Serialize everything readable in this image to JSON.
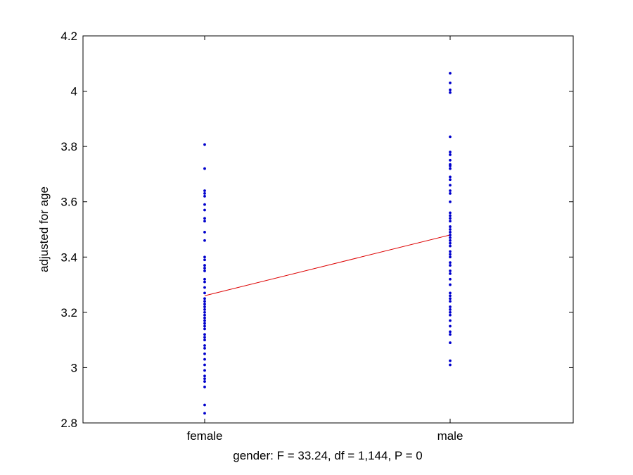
{
  "chart_data": {
    "type": "scatter",
    "title": "",
    "xlabel": "gender: F = 33.24, df = 1,144, P = 0",
    "ylabel": "adjusted for age",
    "categories": [
      "female",
      "male"
    ],
    "ylim": [
      2.8,
      4.2
    ],
    "yticks": [
      2.8,
      3,
      3.2,
      3.4,
      3.6,
      3.8,
      4,
      4.2
    ],
    "grid": false,
    "series": [
      {
        "category": "female",
        "values": [
          3.807,
          3.72,
          3.64,
          3.63,
          3.62,
          3.59,
          3.57,
          3.54,
          3.53,
          3.49,
          3.46,
          3.4,
          3.39,
          3.37,
          3.36,
          3.35,
          3.32,
          3.31,
          3.29,
          3.27,
          3.25,
          3.24,
          3.23,
          3.22,
          3.21,
          3.2,
          3.19,
          3.18,
          3.17,
          3.16,
          3.15,
          3.14,
          3.12,
          3.11,
          3.1,
          3.08,
          3.07,
          3.05,
          3.03,
          3.01,
          2.99,
          2.97,
          2.96,
          2.95,
          2.93,
          2.865,
          2.835
        ]
      },
      {
        "category": "male",
        "values": [
          4.065,
          4.03,
          4.005,
          3.995,
          3.835,
          3.78,
          3.77,
          3.75,
          3.735,
          3.73,
          3.72,
          3.69,
          3.68,
          3.66,
          3.64,
          3.63,
          3.6,
          3.56,
          3.55,
          3.54,
          3.53,
          3.51,
          3.5,
          3.49,
          3.48,
          3.47,
          3.46,
          3.45,
          3.44,
          3.42,
          3.41,
          3.4,
          3.38,
          3.37,
          3.35,
          3.34,
          3.32,
          3.3,
          3.27,
          3.26,
          3.25,
          3.24,
          3.22,
          3.21,
          3.2,
          3.19,
          3.17,
          3.15,
          3.13,
          3.12,
          3.09,
          3.025,
          3.01
        ]
      }
    ],
    "mean_line": {
      "values": [
        3.26,
        3.48
      ]
    },
    "colors": {
      "points": "#0000cc",
      "line": "#dd0000",
      "axes": "#000000"
    }
  }
}
